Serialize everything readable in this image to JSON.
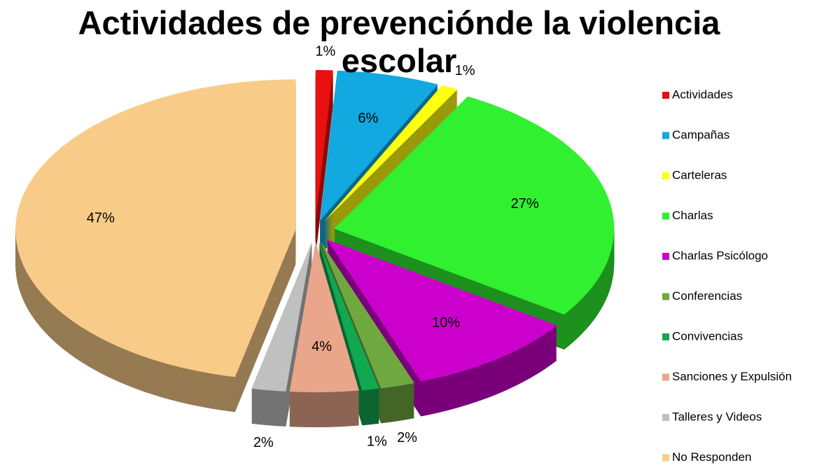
{
  "chart_data": {
    "type": "pie3d",
    "title": "Actividades de prevenciónde la violencia escolar",
    "categories": [
      "Actividades",
      "Campañas",
      "Carteleras",
      "Charlas",
      "Charlas Psicólogo",
      "Conferencias",
      "Convivencias",
      "Sanciones y Expulsión",
      "Talleres y Videos",
      "No Responden"
    ],
    "values": [
      1,
      6,
      1,
      27,
      10,
      2,
      1,
      4,
      2,
      47
    ],
    "value_labels": [
      "1%",
      "6%",
      "1%",
      "27%",
      "10%",
      "2%",
      "1%",
      "4%",
      "2%",
      "47%"
    ],
    "colors": [
      "#e81010",
      "#12a8e0",
      "#ffff10",
      "#30f030",
      "#cc00cc",
      "#70a840",
      "#10a850",
      "#eaa68a",
      "#c0c0c0",
      "#f8cc88"
    ],
    "legend": "right"
  }
}
